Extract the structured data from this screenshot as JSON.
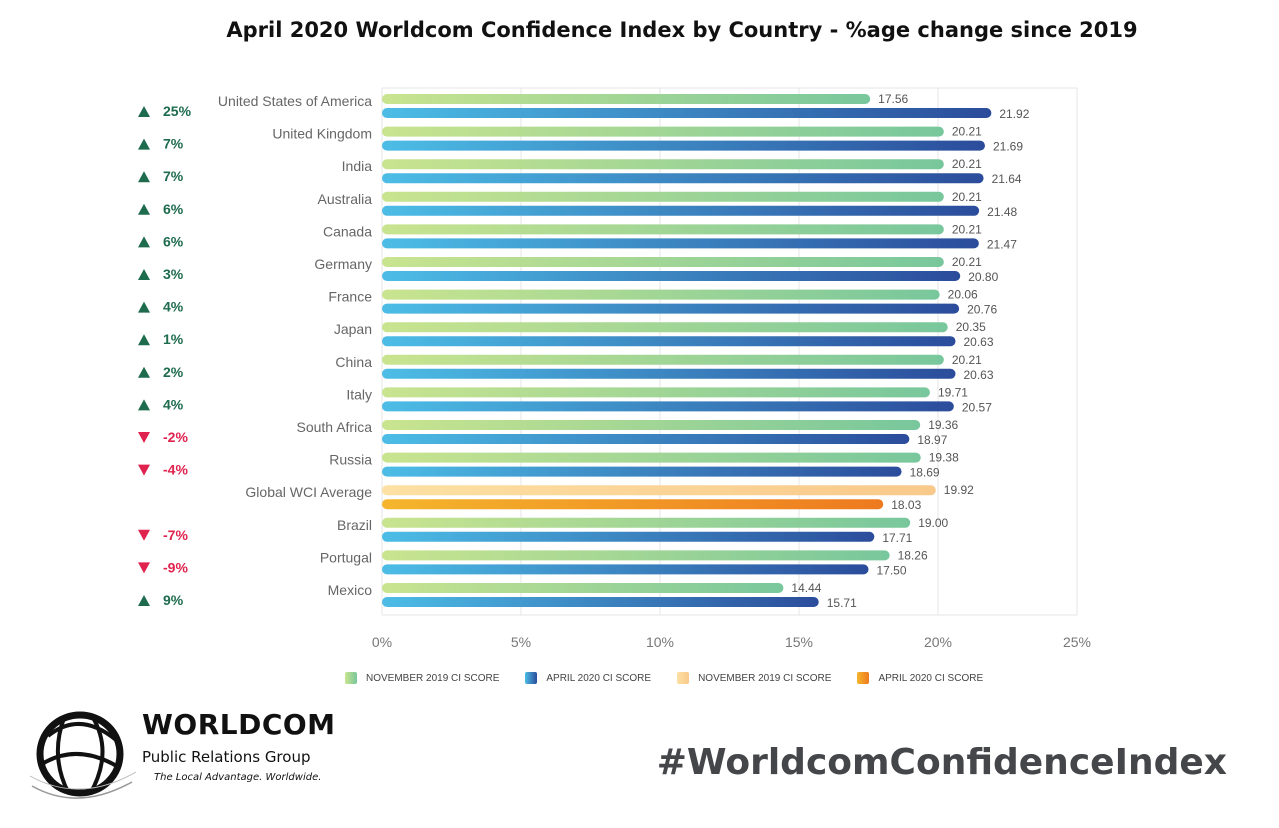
{
  "title": "April 2020 Worldcom Confidence Index by Country - %age change since 2019",
  "chart_data": {
    "type": "bar",
    "orientation": "horizontal",
    "categories": [
      "United States of America",
      "United Kingdom",
      "India",
      "Australia",
      "Canada",
      "Germany",
      "France",
      "Japan",
      "China",
      "Italy",
      "South Africa",
      "Russia",
      "Global WCI Average",
      "Brazil",
      "Portugal",
      "Mexico"
    ],
    "series": [
      {
        "name": "NOVEMBER 2019 CI SCORE",
        "values": [
          17.56,
          20.21,
          20.21,
          20.21,
          20.21,
          20.21,
          20.06,
          20.35,
          20.21,
          19.71,
          19.36,
          19.38,
          19.92,
          19.0,
          18.26,
          14.44
        ]
      },
      {
        "name": "APRIL 2020 CI SCORE",
        "values": [
          21.92,
          21.69,
          21.64,
          21.48,
          21.47,
          20.8,
          20.76,
          20.63,
          20.63,
          20.57,
          18.97,
          18.69,
          18.03,
          17.71,
          17.5,
          15.71
        ]
      }
    ],
    "value_labels": {
      "nov": [
        "17.56",
        "20.21",
        "20.21",
        "20.21",
        "20.21",
        "20.21",
        "20.06",
        "20.35",
        "20.21",
        "19.71",
        "19.36",
        "19.38",
        "19.92",
        "19.00",
        "18.26",
        "14.44"
      ],
      "apr": [
        "21.92",
        "21.69",
        "21.64",
        "21.48",
        "21.47",
        "20.80",
        "20.76",
        "20.63",
        "20.63",
        "20.57",
        "18.97",
        "18.69",
        "18.03",
        "17.71",
        "17.50",
        "15.71"
      ]
    },
    "change": [
      "25%",
      "7%",
      "7%",
      "6%",
      "6%",
      "3%",
      "4%",
      "1%",
      "2%",
      "4%",
      "-2%",
      "-4%",
      "",
      "-7%",
      "-9%",
      "9%"
    ],
    "direction": [
      "up",
      "up",
      "up",
      "up",
      "up",
      "up",
      "up",
      "up",
      "up",
      "up",
      "down",
      "down",
      "",
      "down",
      "down",
      "up"
    ],
    "highlight_category": "Global WCI Average",
    "x_ticks": [
      "0%",
      "5%",
      "10%",
      "15%",
      "20%",
      "25%"
    ],
    "xlim": [
      0,
      25
    ],
    "grid": true,
    "legend": [
      {
        "label": "NOVEMBER 2019 CI SCORE",
        "color_start": "#c9e48f",
        "color_end": "#78c79c"
      },
      {
        "label": "APRIL 2020 CI SCORE",
        "color_start": "#4cbde6",
        "color_end": "#2b4c9b"
      },
      {
        "label": "NOVEMBER 2019 CI SCORE",
        "color_start": "#fde0a3",
        "color_end": "#f8c98a"
      },
      {
        "label": "APRIL 2020 CI SCORE",
        "color_start": "#f4b52c",
        "color_end": "#ee7a1f"
      }
    ],
    "legend_position": "bottom"
  },
  "colors": {
    "up": "#1e6b4e",
    "down": "#e0234e",
    "nov_start": "#c9e48f",
    "nov_end": "#78c79c",
    "apr_start": "#4cbde6",
    "apr_end": "#2b4c9b",
    "gnov_start": "#fde0a3",
    "gnov_end": "#f8c98a",
    "gapr_start": "#f4b52c",
    "gapr_end": "#ee7a1f",
    "label": "#555555",
    "grid": "#e6e6e6"
  },
  "logo": {
    "name": "WORLDCOM",
    "subtitle": "Public Relations Group",
    "tagline": "The Local Advantage. Worldwide."
  },
  "hashtag": "#WorldcomConfidenceIndex"
}
